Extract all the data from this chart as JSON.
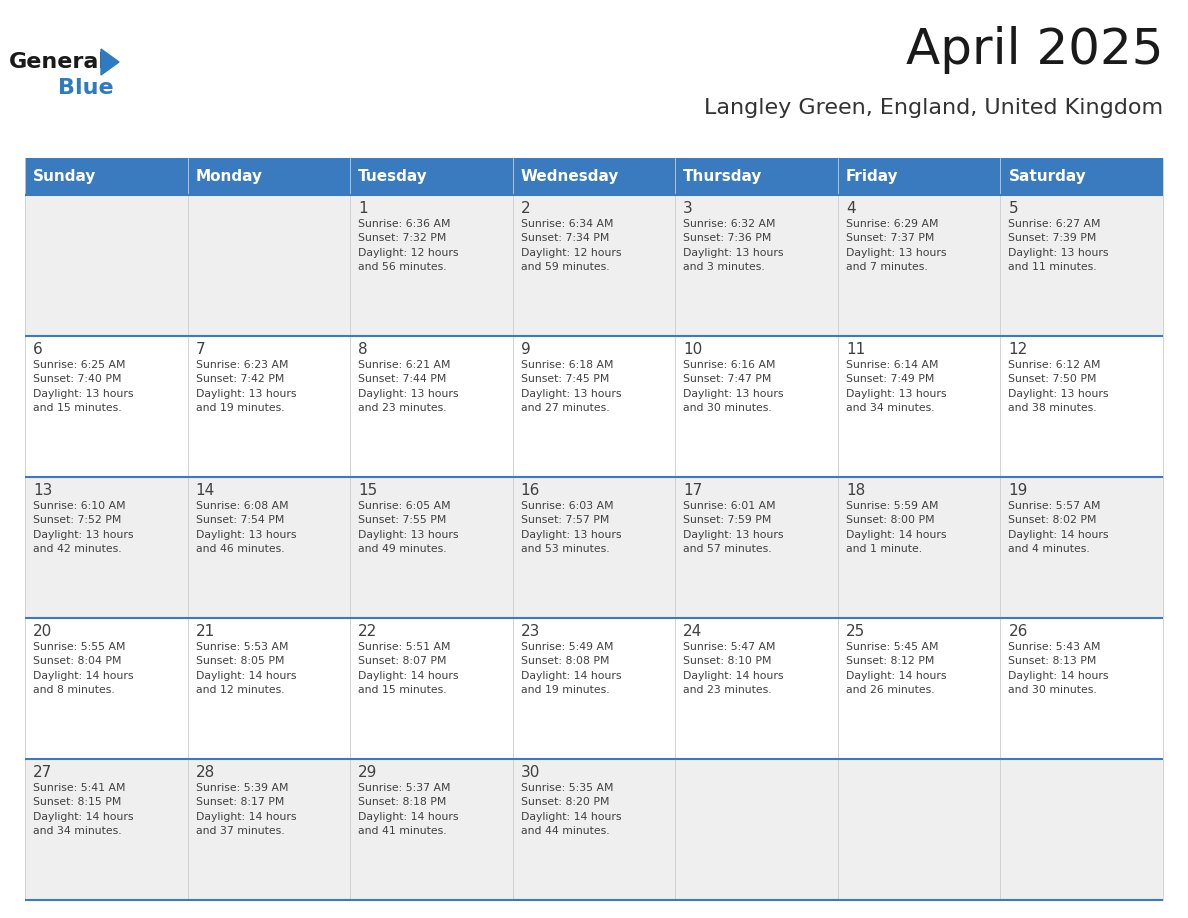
{
  "title": "April 2025",
  "subtitle": "Langley Green, England, United Kingdom",
  "days_of_week": [
    "Sunday",
    "Monday",
    "Tuesday",
    "Wednesday",
    "Thursday",
    "Friday",
    "Saturday"
  ],
  "header_bg": "#3a7bbf",
  "header_text_color": "#ffffff",
  "cell_bg_week1": "#efefef",
  "cell_bg_week2": "#ffffff",
  "cell_border_color": "#3a7bbf",
  "text_color": "#404040",
  "title_color": "#1a1a1a",
  "subtitle_color": "#333333",
  "logo_general_color": "#1a1a1a",
  "logo_blue_color": "#2e7bbf",
  "bg_color": "#ffffff",
  "weeks": [
    [
      {
        "day": null,
        "text": ""
      },
      {
        "day": null,
        "text": ""
      },
      {
        "day": 1,
        "text": "Sunrise: 6:36 AM\nSunset: 7:32 PM\nDaylight: 12 hours\nand 56 minutes."
      },
      {
        "day": 2,
        "text": "Sunrise: 6:34 AM\nSunset: 7:34 PM\nDaylight: 12 hours\nand 59 minutes."
      },
      {
        "day": 3,
        "text": "Sunrise: 6:32 AM\nSunset: 7:36 PM\nDaylight: 13 hours\nand 3 minutes."
      },
      {
        "day": 4,
        "text": "Sunrise: 6:29 AM\nSunset: 7:37 PM\nDaylight: 13 hours\nand 7 minutes."
      },
      {
        "day": 5,
        "text": "Sunrise: 6:27 AM\nSunset: 7:39 PM\nDaylight: 13 hours\nand 11 minutes."
      }
    ],
    [
      {
        "day": 6,
        "text": "Sunrise: 6:25 AM\nSunset: 7:40 PM\nDaylight: 13 hours\nand 15 minutes."
      },
      {
        "day": 7,
        "text": "Sunrise: 6:23 AM\nSunset: 7:42 PM\nDaylight: 13 hours\nand 19 minutes."
      },
      {
        "day": 8,
        "text": "Sunrise: 6:21 AM\nSunset: 7:44 PM\nDaylight: 13 hours\nand 23 minutes."
      },
      {
        "day": 9,
        "text": "Sunrise: 6:18 AM\nSunset: 7:45 PM\nDaylight: 13 hours\nand 27 minutes."
      },
      {
        "day": 10,
        "text": "Sunrise: 6:16 AM\nSunset: 7:47 PM\nDaylight: 13 hours\nand 30 minutes."
      },
      {
        "day": 11,
        "text": "Sunrise: 6:14 AM\nSunset: 7:49 PM\nDaylight: 13 hours\nand 34 minutes."
      },
      {
        "day": 12,
        "text": "Sunrise: 6:12 AM\nSunset: 7:50 PM\nDaylight: 13 hours\nand 38 minutes."
      }
    ],
    [
      {
        "day": 13,
        "text": "Sunrise: 6:10 AM\nSunset: 7:52 PM\nDaylight: 13 hours\nand 42 minutes."
      },
      {
        "day": 14,
        "text": "Sunrise: 6:08 AM\nSunset: 7:54 PM\nDaylight: 13 hours\nand 46 minutes."
      },
      {
        "day": 15,
        "text": "Sunrise: 6:05 AM\nSunset: 7:55 PM\nDaylight: 13 hours\nand 49 minutes."
      },
      {
        "day": 16,
        "text": "Sunrise: 6:03 AM\nSunset: 7:57 PM\nDaylight: 13 hours\nand 53 minutes."
      },
      {
        "day": 17,
        "text": "Sunrise: 6:01 AM\nSunset: 7:59 PM\nDaylight: 13 hours\nand 57 minutes."
      },
      {
        "day": 18,
        "text": "Sunrise: 5:59 AM\nSunset: 8:00 PM\nDaylight: 14 hours\nand 1 minute."
      },
      {
        "day": 19,
        "text": "Sunrise: 5:57 AM\nSunset: 8:02 PM\nDaylight: 14 hours\nand 4 minutes."
      }
    ],
    [
      {
        "day": 20,
        "text": "Sunrise: 5:55 AM\nSunset: 8:04 PM\nDaylight: 14 hours\nand 8 minutes."
      },
      {
        "day": 21,
        "text": "Sunrise: 5:53 AM\nSunset: 8:05 PM\nDaylight: 14 hours\nand 12 minutes."
      },
      {
        "day": 22,
        "text": "Sunrise: 5:51 AM\nSunset: 8:07 PM\nDaylight: 14 hours\nand 15 minutes."
      },
      {
        "day": 23,
        "text": "Sunrise: 5:49 AM\nSunset: 8:08 PM\nDaylight: 14 hours\nand 19 minutes."
      },
      {
        "day": 24,
        "text": "Sunrise: 5:47 AM\nSunset: 8:10 PM\nDaylight: 14 hours\nand 23 minutes."
      },
      {
        "day": 25,
        "text": "Sunrise: 5:45 AM\nSunset: 8:12 PM\nDaylight: 14 hours\nand 26 minutes."
      },
      {
        "day": 26,
        "text": "Sunrise: 5:43 AM\nSunset: 8:13 PM\nDaylight: 14 hours\nand 30 minutes."
      }
    ],
    [
      {
        "day": 27,
        "text": "Sunrise: 5:41 AM\nSunset: 8:15 PM\nDaylight: 14 hours\nand 34 minutes."
      },
      {
        "day": 28,
        "text": "Sunrise: 5:39 AM\nSunset: 8:17 PM\nDaylight: 14 hours\nand 37 minutes."
      },
      {
        "day": 29,
        "text": "Sunrise: 5:37 AM\nSunset: 8:18 PM\nDaylight: 14 hours\nand 41 minutes."
      },
      {
        "day": 30,
        "text": "Sunrise: 5:35 AM\nSunset: 8:20 PM\nDaylight: 14 hours\nand 44 minutes."
      },
      {
        "day": null,
        "text": ""
      },
      {
        "day": null,
        "text": ""
      },
      {
        "day": null,
        "text": ""
      }
    ]
  ]
}
